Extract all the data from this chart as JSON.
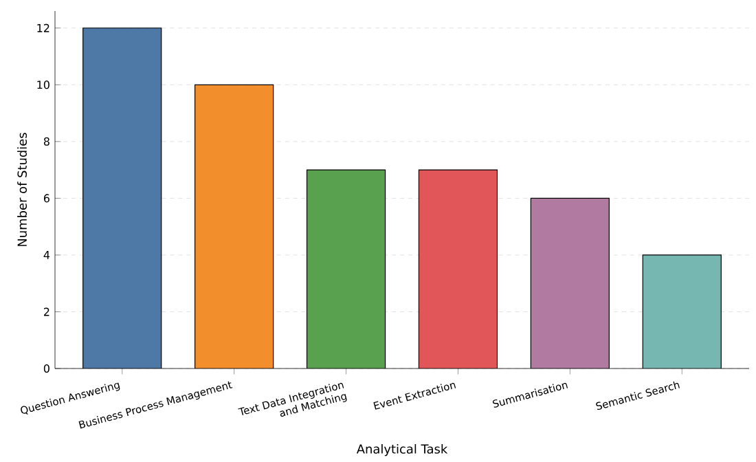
{
  "chart_data": {
    "type": "bar",
    "xlabel": "Analytical Task",
    "ylabel": "Number of Studies",
    "categories": [
      "Question Answering",
      "Business Process Management",
      "Text Data Integration\nand Matching",
      "Event Extraction",
      "Summarisation",
      "Semantic Search"
    ],
    "values": [
      12,
      10,
      7,
      7,
      6,
      4
    ],
    "colors": [
      "#4e79a7",
      "#f28e2b",
      "#59a14f",
      "#e15759",
      "#b07aa1",
      "#76b7b2"
    ],
    "ylim": [
      0,
      12.6
    ],
    "yticks": [
      0,
      2,
      4,
      6,
      8,
      10,
      12
    ],
    "grid": "y"
  }
}
